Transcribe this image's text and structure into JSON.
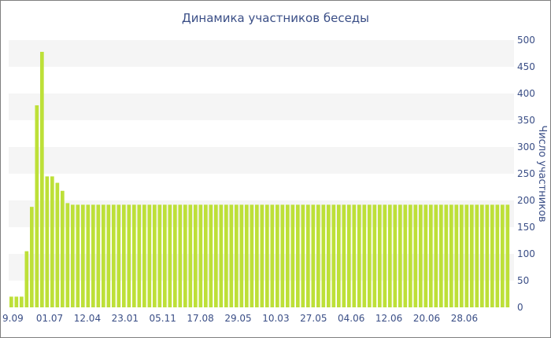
{
  "chart_data": {
    "type": "bar",
    "title": "Динамика участников беседы",
    "xlabel": "",
    "ylabel": "Число участников",
    "ylim": [
      0,
      500
    ],
    "y_ticks": [
      0,
      50,
      100,
      150,
      200,
      250,
      300,
      350,
      400,
      450,
      500
    ],
    "x_tick_labels": [
      "9.09",
      "01.07",
      "12.04",
      "23.01",
      "05.11",
      "17.08",
      "29.05",
      "10.03",
      "27.05",
      "04.06",
      "12.06",
      "20.06",
      "28.06"
    ],
    "y_axis_side": "right",
    "grid": "alternating horizontal bands",
    "bar_color": "#bde038",
    "band_color": "#f5f5f5",
    "text_color": "#3a4e86",
    "values": [
      20,
      20,
      20,
      105,
      188,
      378,
      478,
      245,
      245,
      233,
      218,
      195,
      192,
      192,
      192,
      192,
      192,
      192,
      192,
      192,
      192,
      192,
      192,
      192,
      192,
      192,
      192,
      192,
      192,
      192,
      192,
      192,
      192,
      192,
      192,
      192,
      192,
      192,
      192,
      192,
      192,
      192,
      192,
      192,
      192,
      192,
      192,
      192,
      192,
      192,
      192,
      192,
      192,
      192,
      192,
      192,
      192,
      192,
      192,
      192,
      192,
      192,
      192,
      192,
      192,
      192,
      192,
      192,
      192,
      192,
      192,
      192,
      192,
      192,
      192,
      192,
      192,
      192,
      192,
      192,
      192,
      192,
      192,
      192,
      192,
      192,
      192,
      192,
      192,
      192,
      192,
      192,
      192,
      192,
      192,
      192,
      192,
      192
    ]
  }
}
